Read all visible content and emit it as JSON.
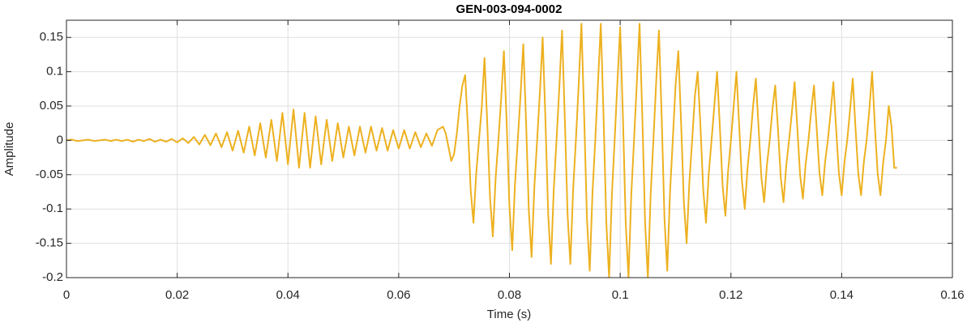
{
  "chart_data": {
    "type": "line",
    "title": "GEN-003-094-0002",
    "x_label": "Time (s)",
    "y_label": "Amplitude",
    "color": "#edb120",
    "grid": true,
    "xlim": [
      0,
      0.16
    ],
    "ylim": [
      -0.2,
      0.175
    ],
    "xticks": [
      0,
      0.02,
      0.04,
      0.06,
      0.08,
      0.1,
      0.12,
      0.14,
      0.16
    ],
    "yticks": [
      -0.2,
      -0.15,
      -0.1,
      -0.05,
      0,
      0.05,
      0.1,
      0.15
    ],
    "x": [
      0,
      0.001,
      0.002,
      0.003,
      0.004,
      0.005,
      0.006,
      0.007,
      0.008,
      0.009,
      0.01,
      0.011,
      0.012,
      0.013,
      0.014,
      0.015,
      0.016,
      0.017,
      0.018,
      0.019,
      0.02,
      0.021,
      0.022,
      0.023,
      0.024,
      0.025,
      0.026,
      0.027,
      0.028,
      0.029,
      0.03,
      0.031,
      0.032,
      0.033,
      0.034,
      0.035,
      0.036,
      0.037,
      0.038,
      0.039,
      0.04,
      0.041,
      0.042,
      0.043,
      0.044,
      0.045,
      0.046,
      0.047,
      0.048,
      0.049,
      0.05,
      0.051,
      0.052,
      0.053,
      0.054,
      0.055,
      0.056,
      0.057,
      0.058,
      0.059,
      0.06,
      0.061,
      0.062,
      0.063,
      0.064,
      0.065,
      0.066,
      0.067,
      0.068,
      0.0685,
      0.069,
      0.0695,
      0.07,
      0.0705,
      0.071,
      0.0715,
      0.072,
      0.0725,
      0.073,
      0.0735,
      0.074,
      0.0745,
      0.075,
      0.0755,
      0.076,
      0.0765,
      0.077,
      0.0775,
      0.078,
      0.0785,
      0.079,
      0.0795,
      0.08,
      0.0805,
      0.081,
      0.0815,
      0.082,
      0.0825,
      0.083,
      0.0835,
      0.084,
      0.0845,
      0.085,
      0.0855,
      0.086,
      0.0865,
      0.087,
      0.0875,
      0.088,
      0.0885,
      0.089,
      0.0895,
      0.09,
      0.0905,
      0.091,
      0.0915,
      0.092,
      0.0925,
      0.093,
      0.0935,
      0.094,
      0.0945,
      0.095,
      0.0955,
      0.096,
      0.0965,
      0.097,
      0.0975,
      0.098,
      0.0985,
      0.099,
      0.0995,
      0.1,
      0.1005,
      0.101,
      0.1015,
      0.102,
      0.1025,
      0.103,
      0.1035,
      0.104,
      0.1045,
      0.105,
      0.1055,
      0.106,
      0.1065,
      0.107,
      0.1075,
      0.108,
      0.1085,
      0.109,
      0.1095,
      0.11,
      0.1105,
      0.111,
      0.1115,
      0.112,
      0.1125,
      0.113,
      0.1135,
      0.114,
      0.1145,
      0.115,
      0.1155,
      0.116,
      0.1165,
      0.117,
      0.1175,
      0.118,
      0.1185,
      0.119,
      0.1195,
      0.12,
      0.1205,
      0.121,
      0.1215,
      0.122,
      0.1225,
      0.123,
      0.1235,
      0.124,
      0.1245,
      0.125,
      0.1255,
      0.126,
      0.1265,
      0.127,
      0.1275,
      0.128,
      0.1285,
      0.129,
      0.1295,
      0.13,
      0.1305,
      0.131,
      0.1315,
      0.132,
      0.1325,
      0.133,
      0.1335,
      0.134,
      0.1345,
      0.135,
      0.1355,
      0.136,
      0.1365,
      0.137,
      0.1375,
      0.138,
      0.1385,
      0.139,
      0.1395,
      0.14,
      0.1405,
      0.141,
      0.1415,
      0.142,
      0.1425,
      0.143,
      0.1435,
      0.144,
      0.1445,
      0.145,
      0.1455,
      0.146,
      0.1465,
      0.147,
      0.1475,
      0.148,
      0.1485,
      0.149,
      0.1495,
      0.15
    ],
    "values": [
      0,
      0.001,
      -0.001,
      0,
      0.001,
      -0.001,
      0,
      0.001,
      -0.001,
      0.001,
      -0.001,
      0.001,
      -0.002,
      0.001,
      -0.001,
      0.002,
      -0.002,
      0.001,
      -0.002,
      0.002,
      -0.003,
      0.003,
      -0.004,
      0.005,
      -0.006,
      0.008,
      -0.007,
      0.01,
      -0.01,
      0.012,
      -0.015,
      0.014,
      -0.018,
      0.02,
      -0.022,
      0.025,
      -0.025,
      0.03,
      -0.03,
      0.04,
      -0.035,
      0.045,
      -0.04,
      0.04,
      -0.04,
      0.035,
      -0.035,
      0.03,
      -0.03,
      0.025,
      -0.025,
      0.02,
      -0.022,
      0.02,
      -0.018,
      0.02,
      -0.015,
      0.018,
      -0.015,
      0.015,
      -0.012,
      0.015,
      -0.012,
      0.012,
      -0.01,
      0.01,
      -0.008,
      0.015,
      0.02,
      0.01,
      -0.01,
      -0.03,
      -0.02,
      0.01,
      0.05,
      0.08,
      0.095,
      0.019,
      -0.072,
      -0.12,
      -0.048,
      0,
      0.048,
      0.12,
      0.024,
      -0.084,
      -0.14,
      -0.056,
      0,
      0.06,
      0.13,
      0.026,
      -0.096,
      -0.16,
      -0.064,
      0,
      0.065,
      0.14,
      0.028,
      -0.102,
      -0.17,
      -0.068,
      0,
      0.07,
      0.15,
      0.03,
      -0.108,
      -0.18,
      -0.072,
      0,
      0.075,
      0.16,
      0.032,
      -0.108,
      -0.18,
      -0.072,
      0,
      0.08,
      0.17,
      0.034,
      -0.114,
      -0.19,
      -0.076,
      0,
      0.085,
      0.17,
      0.034,
      -0.12,
      -0.2,
      -0.08,
      0,
      0.085,
      0.165,
      0.033,
      -0.12,
      -0.2,
      -0.08,
      0,
      0.083,
      0.17,
      0.034,
      -0.12,
      -0.2,
      -0.08,
      0,
      0.085,
      0.16,
      0.032,
      -0.114,
      -0.19,
      -0.076,
      0,
      0.08,
      0.13,
      0.026,
      -0.09,
      -0.15,
      -0.06,
      0,
      0.065,
      0.1,
      0.02,
      -0.072,
      -0.12,
      -0.048,
      0,
      0.05,
      0.1,
      0.02,
      -0.066,
      -0.11,
      -0.044,
      0,
      0.05,
      0.1,
      0.02,
      -0.06,
      -0.1,
      -0.04,
      0,
      0.05,
      0.09,
      0.018,
      -0.054,
      -0.09,
      -0.036,
      0,
      0.045,
      0.08,
      0.016,
      -0.054,
      -0.09,
      -0.036,
      0,
      0.04,
      0.085,
      0.017,
      -0.051,
      -0.085,
      -0.034,
      0,
      0.043,
      0.08,
      0.016,
      -0.048,
      -0.08,
      -0.032,
      0,
      0.04,
      0.085,
      0.017,
      -0.048,
      -0.08,
      -0.032,
      0,
      0.043,
      0.09,
      0.018,
      -0.048,
      -0.08,
      -0.032,
      0,
      0.045,
      0.1,
      0.02,
      -0.048,
      -0.08,
      -0.032,
      0,
      0.05,
      0.02,
      -0.04,
      -0.04
    ]
  }
}
